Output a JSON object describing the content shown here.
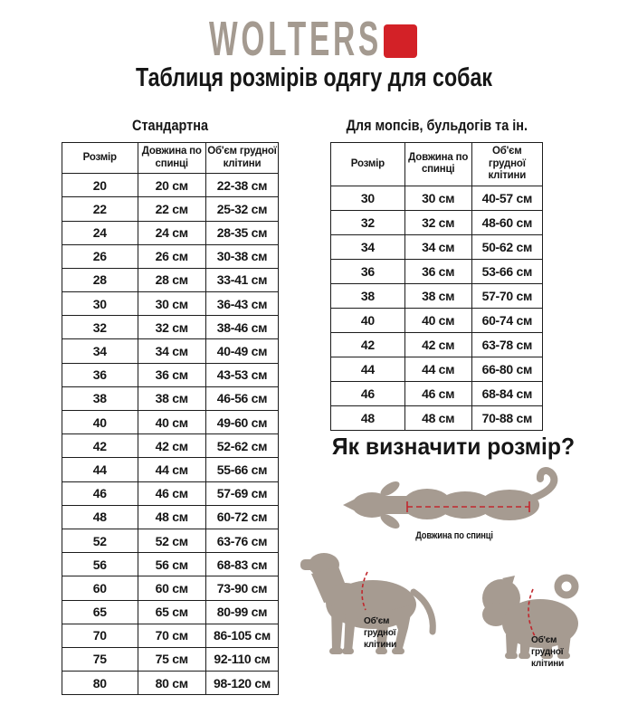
{
  "logo": {
    "text": "WOLTERS"
  },
  "title": "Таблиця розмірів одягу для собак",
  "tables": [
    {
      "title": "Стандартна",
      "headers": [
        "Розмір",
        "Довжина по спинці",
        "Об'єм грудної клітини"
      ],
      "rows": [
        [
          "20",
          "20 см",
          "22-38 см"
        ],
        [
          "22",
          "22 см",
          "25-32 см"
        ],
        [
          "24",
          "24 см",
          "28-35 см"
        ],
        [
          "26",
          "26 см",
          "30-38 см"
        ],
        [
          "28",
          "28 см",
          "33-41 см"
        ],
        [
          "30",
          "30 см",
          "36-43 см"
        ],
        [
          "32",
          "32 см",
          "38-46 см"
        ],
        [
          "34",
          "34 см",
          "40-49 см"
        ],
        [
          "36",
          "36 см",
          "43-53 см"
        ],
        [
          "38",
          "38 см",
          "46-56 см"
        ],
        [
          "40",
          "40 см",
          "49-60 см"
        ],
        [
          "42",
          "42 см",
          "52-62 см"
        ],
        [
          "44",
          "44 см",
          "55-66 см"
        ],
        [
          "46",
          "46 см",
          "57-69 см"
        ],
        [
          "48",
          "48 см",
          "60-72 см"
        ],
        [
          "52",
          "52 см",
          "63-76 см"
        ],
        [
          "56",
          "56 см",
          "68-83 см"
        ],
        [
          "60",
          "60 см",
          "73-90 см"
        ],
        [
          "65",
          "65 см",
          "80-99 см"
        ],
        [
          "70",
          "70 см",
          "86-105 см"
        ],
        [
          "75",
          "75 см",
          "92-110 см"
        ],
        [
          "80",
          "80 см",
          "98-120 см"
        ]
      ]
    },
    {
      "title": "Для мопсів, бульдогів та ін.",
      "headers": [
        "Розмір",
        "Довжина по спинці",
        "Об'єм грудної клітини"
      ],
      "rows": [
        [
          "30",
          "30 см",
          "40-57 см"
        ],
        [
          "32",
          "32 см",
          "48-60 см"
        ],
        [
          "34",
          "34 см",
          "50-62 см"
        ],
        [
          "36",
          "36 см",
          "53-66 см"
        ],
        [
          "38",
          "38 см",
          "57-70 см"
        ],
        [
          "40",
          "40 см",
          "60-74 см"
        ],
        [
          "42",
          "42 см",
          "63-78 см"
        ],
        [
          "44",
          "44 см",
          "66-80 см"
        ],
        [
          "46",
          "46 см",
          "68-84 см"
        ],
        [
          "48",
          "48 см",
          "70-88 см"
        ]
      ]
    }
  ],
  "how_to": {
    "title": "Як визначити розмір?",
    "back_length_label": "Довжина по спинці",
    "chest_label": "Об'єм грудної клітини"
  },
  "colors": {
    "brand-red": "#d32127",
    "logo-gray": "#a49a90",
    "dog-taupe": "#a69b91",
    "dash-red": "#c1272d",
    "text": "#161616",
    "border": "#1c1c1c"
  }
}
